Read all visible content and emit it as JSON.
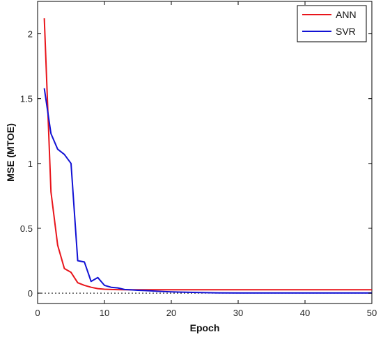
{
  "chart_data": {
    "type": "line",
    "title": "",
    "xlabel": "Epoch",
    "ylabel": "MSE (MTOE)",
    "xlim": [
      0,
      50
    ],
    "ylim": [
      -0.08,
      2.25
    ],
    "xticks": [
      0,
      10,
      20,
      30,
      40,
      50
    ],
    "xtick_labels": [
      "0",
      "10",
      "20",
      "30",
      "40",
      "50"
    ],
    "yticks": [
      0,
      0.5,
      1,
      1.5,
      2
    ],
    "ytick_labels": [
      "0",
      "0.5",
      "1",
      "1.5",
      "2"
    ],
    "grid": false,
    "legend_position": "top-right",
    "reference_line": {
      "y": 0,
      "style": "dotted",
      "color": "#000000"
    },
    "series": [
      {
        "name": "ANN",
        "color": "#e8151b",
        "x": [
          1,
          2,
          3,
          4,
          5,
          6,
          7,
          8,
          9,
          10,
          11,
          12,
          13,
          14,
          15,
          16,
          17,
          18,
          19,
          20,
          25,
          30,
          35,
          40,
          45,
          50
        ],
        "y": [
          2.12,
          0.78,
          0.37,
          0.19,
          0.16,
          0.08,
          0.06,
          0.045,
          0.035,
          0.03,
          0.028,
          0.027,
          0.026,
          0.026,
          0.026,
          0.026,
          0.026,
          0.026,
          0.026,
          0.026,
          0.026,
          0.026,
          0.026,
          0.026,
          0.026,
          0.026
        ]
      },
      {
        "name": "SVR",
        "color": "#1212d4",
        "x": [
          1,
          2,
          3,
          4,
          5,
          6,
          7,
          8,
          9,
          10,
          11,
          12,
          13,
          14,
          15,
          16,
          17,
          18,
          19,
          20,
          22,
          25,
          27,
          30,
          35,
          40,
          45,
          50
        ],
        "y": [
          1.58,
          1.23,
          1.11,
          1.07,
          1.0,
          0.25,
          0.24,
          0.09,
          0.12,
          0.06,
          0.045,
          0.04,
          0.028,
          0.025,
          0.022,
          0.02,
          0.017,
          0.014,
          0.012,
          0.01,
          0.007,
          0.004,
          0.002,
          0.001,
          0.001,
          0.001,
          0.001,
          0.001
        ]
      }
    ]
  }
}
